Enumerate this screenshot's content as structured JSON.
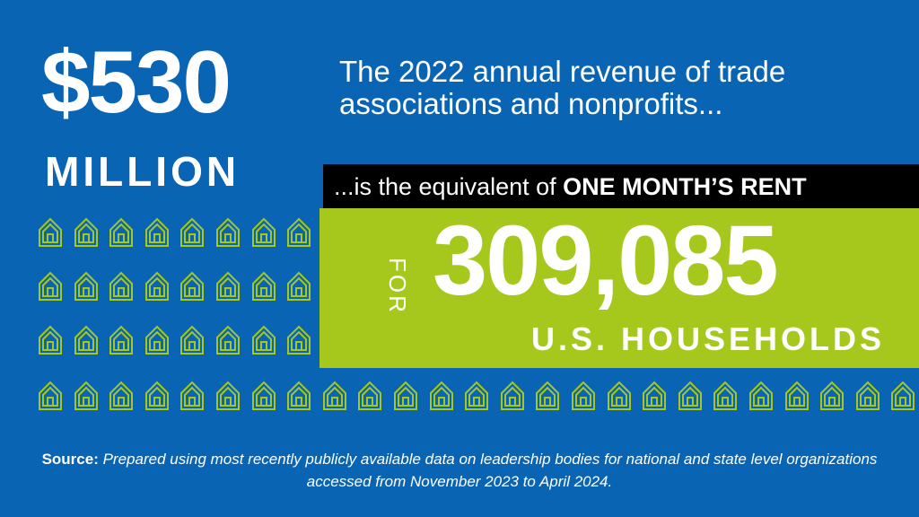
{
  "headline_stat": {
    "amount": "$530",
    "unit": "MILLION"
  },
  "headline_text": "The 2022 annual revenue of trade associations and nonprofits...",
  "equivalence": {
    "lead": "...is the equivalent of ",
    "emphasis": "ONE MONTH’S RENT"
  },
  "count": {
    "prefix": "FOR",
    "value": "309,085",
    "unit": "U.S. HOUSEHOLDS"
  },
  "source": {
    "label": "Source:",
    "text": " Prepared using most recently publicly available data on leadership bodies for national and state level organizations accessed from November 2023 to April 2024."
  },
  "colors": {
    "background": "#0a64b4",
    "accent_green": "#a6c81c",
    "bar_black": "#000000",
    "text": "#ffffff"
  },
  "icons": {
    "house": "house-outline-icon"
  }
}
